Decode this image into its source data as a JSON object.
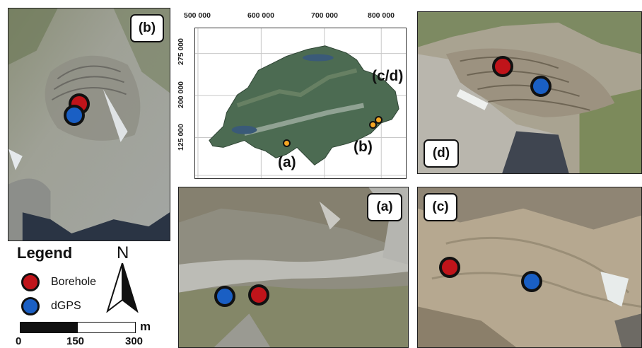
{
  "panels": {
    "b": {
      "label": "(b)"
    },
    "d": {
      "label": "(d)"
    },
    "a": {
      "label": "(a)"
    },
    "c": {
      "label": "(c)"
    }
  },
  "overview_map": {
    "x_ticks": [
      "500 000",
      "600 000",
      "700 000",
      "800 000"
    ],
    "y_ticks": [
      "275 000",
      "200 000",
      "125 000"
    ],
    "site_labels": {
      "a": "(a)",
      "b": "(b)",
      "cd": "(c/d)"
    }
  },
  "legend": {
    "title": "Legend",
    "items": [
      {
        "label": "Borehole",
        "color": "#c0141a"
      },
      {
        "label": "dGPS",
        "color": "#1a5fc4"
      }
    ],
    "north_label": "N",
    "scale": {
      "unit": "m",
      "ticks": [
        "0",
        "150",
        "300"
      ]
    }
  },
  "colors": {
    "borehole": "#c0141a",
    "dgps": "#1a5fc4",
    "site_marker": "#f5a623"
  }
}
